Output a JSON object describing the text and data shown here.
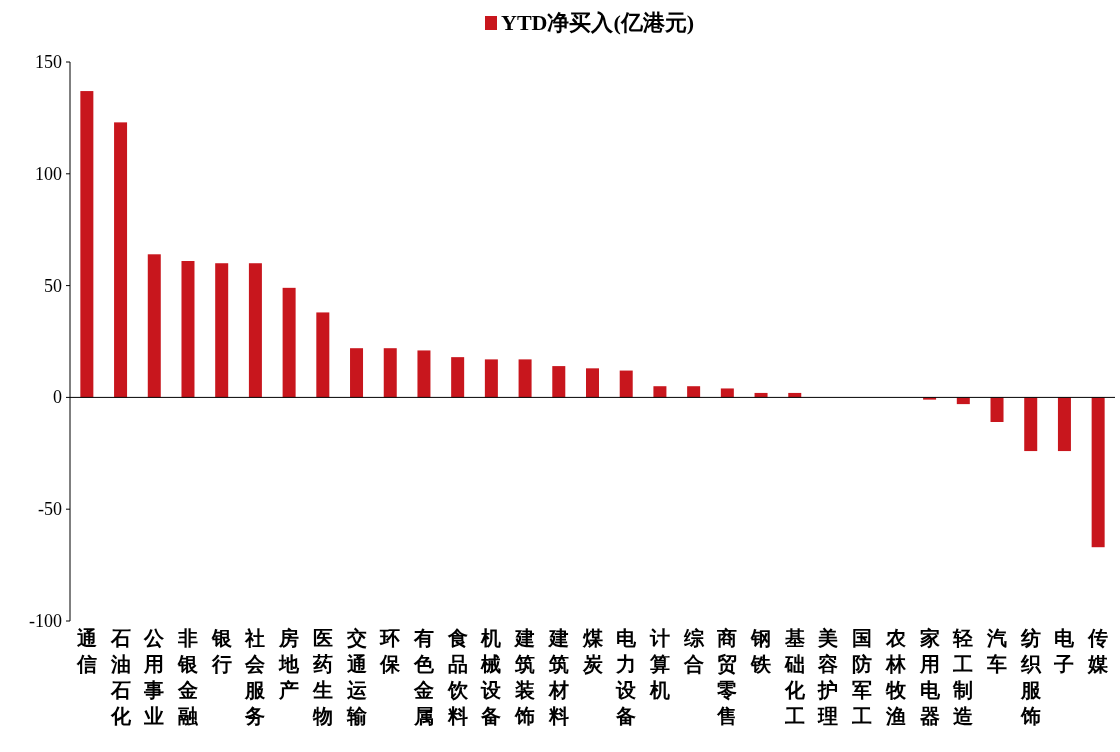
{
  "chart_data": {
    "type": "bar",
    "categories": [
      "通信",
      "石油石化",
      "公用事业",
      "非银金融",
      "银行",
      "社会服务",
      "房地产",
      "医药生物",
      "交通运输",
      "环保",
      "有色金属",
      "食品饮料",
      "机械设备",
      "建筑装饰",
      "建筑材料",
      "煤炭",
      "电力设备",
      "计算机",
      "综合",
      "商贸零售",
      "钢铁",
      "基础化工",
      "美容护理",
      "国防军工",
      "农林牧渔",
      "家用电器",
      "轻工制造",
      "汽车",
      "纺织服饰",
      "电子",
      "传媒"
    ],
    "series": [
      {
        "name": "YTD净买入(亿港元)",
        "color": "#c8161d",
        "values": [
          137,
          123,
          64,
          61,
          60,
          60,
          49,
          38,
          22,
          22,
          21,
          18,
          17,
          17,
          14,
          13,
          12,
          5,
          5,
          4,
          2,
          2,
          0,
          0,
          0,
          -1,
          -3,
          -11,
          -24,
          -24,
          -67
        ]
      }
    ],
    "ylim": [
      -100,
      150
    ],
    "yticks": [
      -100,
      -50,
      0,
      50,
      100,
      150
    ],
    "legend": "top"
  }
}
